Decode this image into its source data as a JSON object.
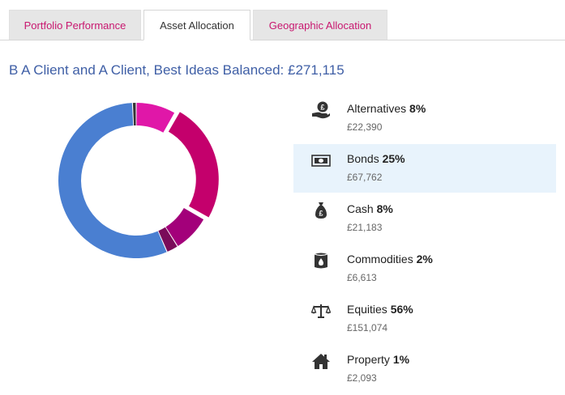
{
  "tabs": {
    "portfolio_performance": "Portfolio Performance",
    "asset_allocation": "Asset Allocation",
    "geographic_allocation": "Geographic Allocation"
  },
  "title": "B A Client and A Client, Best Ideas Balanced: £271,115",
  "colors": {
    "alternatives": "#e017a8",
    "bonds": "#c4006c",
    "cash": "#a3007a",
    "commodities": "#7a0b5a",
    "equities": "#4a7fd1",
    "property": "#333333"
  },
  "chart_data": {
    "type": "pie",
    "categories": [
      "Alternatives",
      "Bonds",
      "Cash",
      "Commodities",
      "Equities",
      "Property"
    ],
    "values": [
      22390,
      67762,
      21183,
      6613,
      151074,
      2093
    ],
    "percent_labels": [
      "8%",
      "25%",
      "8%",
      "2%",
      "56%",
      "1%"
    ]
  },
  "legend": [
    {
      "name": "Alternatives",
      "pct": "8%",
      "value": "£22,390",
      "icon": "money-hand-icon"
    },
    {
      "name": "Bonds",
      "pct": "25%",
      "value": "£67,762",
      "icon": "banknote-icon"
    },
    {
      "name": "Cash",
      "pct": "8%",
      "value": "£21,183",
      "icon": "money-bag-icon"
    },
    {
      "name": "Commodities",
      "pct": "2%",
      "value": "£6,613",
      "icon": "oil-barrel-icon"
    },
    {
      "name": "Equities",
      "pct": "56%",
      "value": "£151,074",
      "icon": "scales-icon"
    },
    {
      "name": "Property",
      "pct": "1%",
      "value": "£2,093",
      "icon": "house-icon"
    }
  ]
}
